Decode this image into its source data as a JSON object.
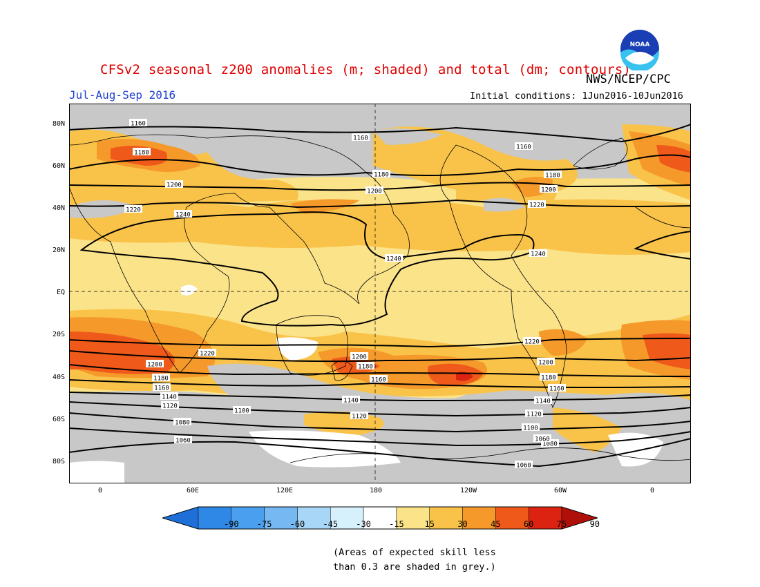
{
  "title": "CFSv2 seasonal z200 anomalies (m; shaded) and total (dm; contours)",
  "agency": "NWS/NCEP/CPC",
  "logo_text": "NOAA",
  "period": "Jul-Aug-Sep 2016",
  "initial_conditions": "Initial conditions: 1Jun2016-10Jun2016",
  "lat_labels": [
    "80N",
    "60N",
    "40N",
    "20N",
    "EQ",
    "20S",
    "40S",
    "60S",
    "80S"
  ],
  "lon_labels": [
    "0",
    "60E",
    "120E",
    "180",
    "120W",
    "60W",
    "0"
  ],
  "colorbar": {
    "labels": [
      "-90",
      "-75",
      "-60",
      "-45",
      "-30",
      "-15",
      "15",
      "30",
      "45",
      "60",
      "75",
      "90"
    ],
    "colors": [
      "#1f6fd8",
      "#2f87e6",
      "#4aa0ee",
      "#76b9f2",
      "#a8d6f6",
      "#d6f1fb",
      "#ffffff",
      "#fbe38a",
      "#f9c34a",
      "#f59a2a",
      "#ef5a1a",
      "#dc2312",
      "#b0100a"
    ]
  },
  "contour_labels": [
    "1160",
    "1180",
    "1200",
    "1220",
    "1240",
    "1160",
    "1180",
    "1200",
    "1240",
    "1160",
    "1180",
    "1200",
    "1220",
    "1240",
    "1220",
    "1200",
    "1180",
    "1160",
    "1140",
    "1120",
    "1100",
    "1080",
    "1060",
    "1200",
    "1180",
    "1160",
    "1140",
    "1120",
    "1080",
    "1060",
    "1220",
    "1200",
    "1180",
    "1160",
    "1140",
    "1120",
    "1100",
    "1080",
    "1060"
  ],
  "note_line1": "(Areas of expected skill less",
  "note_line2": "than 0.3 are shaded in grey.)",
  "shade_colors": {
    "grey": "#c8c8c8",
    "c15": "#fbe38a",
    "c30": "#f9c34a",
    "c45": "#f59a2a",
    "c60": "#ef5a1a",
    "c75": "#dc2312",
    "white": "#ffffff"
  }
}
